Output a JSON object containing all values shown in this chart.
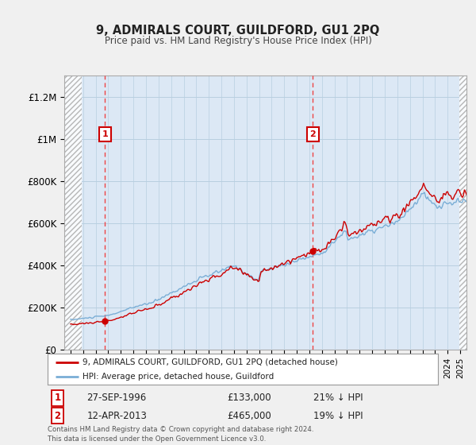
{
  "title": "9, ADMIRALS COURT, GUILDFORD, GU1 2PQ",
  "subtitle": "Price paid vs. HM Land Registry's House Price Index (HPI)",
  "legend_line1": "9, ADMIRALS COURT, GUILDFORD, GU1 2PQ (detached house)",
  "legend_line2": "HPI: Average price, detached house, Guildford",
  "footer": "Contains HM Land Registry data © Crown copyright and database right 2024.\nThis data is licensed under the Open Government Licence v3.0.",
  "sale1_date": 1996.75,
  "sale1_price": 133000,
  "sale1_label": "27-SEP-1996",
  "sale1_price_str": "£133,000",
  "sale1_pct": "21% ↓ HPI",
  "sale2_date": 2013.28,
  "sale2_price": 465000,
  "sale2_label": "12-APR-2013",
  "sale2_price_str": "£465,000",
  "sale2_pct": "19% ↓ HPI",
  "price_color": "#cc0000",
  "hpi_color": "#7aaed6",
  "vline_color": "#ee4444",
  "xlim": [
    1993.5,
    2025.5
  ],
  "ylim": [
    0,
    1300000
  ],
  "yticks": [
    0,
    200000,
    400000,
    600000,
    800000,
    1000000,
    1200000
  ],
  "ytick_labels": [
    "£0",
    "£200K",
    "£400K",
    "£600K",
    "£800K",
    "£1M",
    "£1.2M"
  ],
  "background_color": "#f0f0f0",
  "plot_bg_color": "#dce8f5",
  "hatch_color": "#c8d0d8"
}
